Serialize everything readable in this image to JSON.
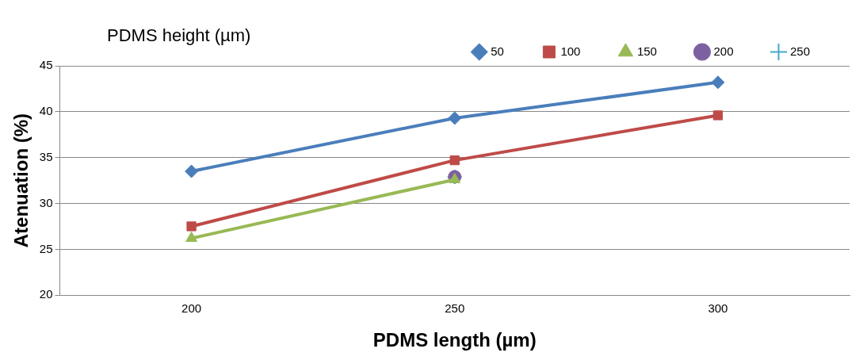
{
  "chart_data": {
    "type": "line",
    "legend_title": "PDMS height (µm)",
    "xlabel": "PDMS length (µm)",
    "ylabel": "Atenuation (%)",
    "categories": [
      "200",
      "250",
      "300"
    ],
    "series": [
      {
        "name": "50",
        "color": "#4a7ebb",
        "marker": "diamond",
        "values": [
          33.5,
          39.3,
          43.2
        ]
      },
      {
        "name": "100",
        "color": "#be4b48",
        "marker": "square",
        "values": [
          27.5,
          34.7,
          39.6
        ]
      },
      {
        "name": "150",
        "color": "#98b954",
        "marker": "triangle",
        "values": [
          26.2,
          32.6,
          null
        ]
      },
      {
        "name": "200",
        "color": "#7d60a0",
        "marker": "circle",
        "values": [
          null,
          32.9,
          null
        ]
      },
      {
        "name": "250",
        "color": "#46aac5",
        "marker": "cross",
        "values": [
          null,
          32.9,
          null
        ]
      }
    ],
    "ylim": [
      20,
      45
    ],
    "yticks": [
      20,
      25,
      30,
      35,
      40,
      45
    ],
    "grid": "y",
    "legend": "top right"
  }
}
